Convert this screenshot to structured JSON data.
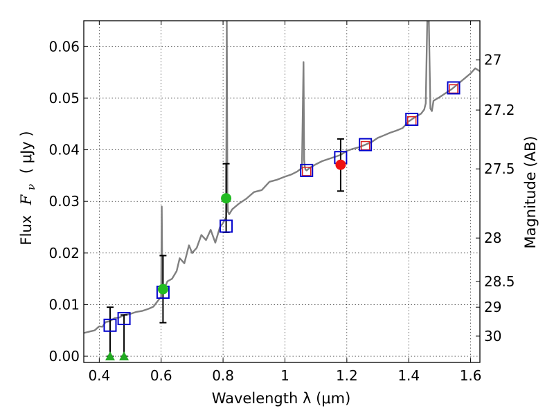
{
  "chart_data": {
    "type": "scatter",
    "xlabel": "Wavelength  λ (μm)",
    "ylabel_prefix": "Flux",
    "ylabel_symbol": "F",
    "ylabel_subscript": "ν",
    "ylabel_unit": "( μJy )",
    "y2label": "Magnitude (AB)",
    "xlim": [
      0.35,
      1.63
    ],
    "ylim": [
      -0.0012,
      0.065
    ],
    "grid": true,
    "x_ticks": [
      {
        "value": 0.4,
        "label": "0.4"
      },
      {
        "value": 0.6,
        "label": "0.6"
      },
      {
        "value": 0.8,
        "label": "0.8"
      },
      {
        "value": 1.0,
        "label": "1"
      },
      {
        "value": 1.2,
        "label": "1.2"
      },
      {
        "value": 1.4,
        "label": "1.4"
      },
      {
        "value": 1.6,
        "label": "1.6"
      }
    ],
    "y_ticks": [
      {
        "value": 0.0,
        "label": "0.00"
      },
      {
        "value": 0.01,
        "label": "0.01"
      },
      {
        "value": 0.02,
        "label": "0.02"
      },
      {
        "value": 0.03,
        "label": "0.03"
      },
      {
        "value": 0.04,
        "label": "0.04"
      },
      {
        "value": 0.05,
        "label": "0.05"
      },
      {
        "value": 0.06,
        "label": "0.06"
      }
    ],
    "mag_ticks": [
      {
        "flux": 0.0574,
        "label": "27"
      },
      {
        "flux": 0.0477,
        "label": "27.2"
      },
      {
        "flux": 0.0363,
        "label": "27.5"
      },
      {
        "flux": 0.0229,
        "label": "28"
      },
      {
        "flux": 0.0145,
        "label": "28.5"
      },
      {
        "flux": 0.0095,
        "label": "29"
      },
      {
        "flux": 0.0039,
        "label": "30"
      }
    ],
    "model_spectrum": {
      "name": "model SED",
      "color": "#808080",
      "x": [
        0.35,
        0.37,
        0.385,
        0.4,
        0.41,
        0.42,
        0.435,
        0.45,
        0.465,
        0.48,
        0.5,
        0.52,
        0.54,
        0.56,
        0.575,
        0.59,
        0.6,
        0.602,
        0.604,
        0.606,
        0.61,
        0.62,
        0.635,
        0.65,
        0.66,
        0.675,
        0.69,
        0.7,
        0.715,
        0.73,
        0.745,
        0.76,
        0.775,
        0.79,
        0.8,
        0.81,
        0.812,
        0.814,
        0.816,
        0.82,
        0.83,
        0.85,
        0.875,
        0.9,
        0.925,
        0.95,
        0.975,
        1.0,
        1.02,
        1.04,
        1.055,
        1.06,
        1.062,
        1.064,
        1.066,
        1.07,
        1.08,
        1.1,
        1.12,
        1.14,
        1.16,
        1.18,
        1.2,
        1.22,
        1.24,
        1.26,
        1.28,
        1.3,
        1.32,
        1.34,
        1.36,
        1.38,
        1.4,
        1.42,
        1.44,
        1.45,
        1.455,
        1.46,
        1.465,
        1.47,
        1.475,
        1.48,
        1.5,
        1.52,
        1.54,
        1.56,
        1.58,
        1.6,
        1.615,
        1.63
      ],
      "y": [
        0.0045,
        0.0048,
        0.005,
        0.0058,
        0.0057,
        0.0066,
        0.0068,
        0.0074,
        0.0075,
        0.008,
        0.0082,
        0.0086,
        0.0088,
        0.0092,
        0.0096,
        0.0108,
        0.0115,
        0.029,
        0.013,
        0.0135,
        0.013,
        0.0145,
        0.015,
        0.0165,
        0.019,
        0.018,
        0.0215,
        0.02,
        0.021,
        0.0235,
        0.0225,
        0.0245,
        0.022,
        0.025,
        0.0258,
        0.027,
        0.065,
        0.031,
        0.028,
        0.0275,
        0.0285,
        0.0295,
        0.0305,
        0.0318,
        0.0322,
        0.0338,
        0.0342,
        0.0348,
        0.0352,
        0.0358,
        0.0365,
        0.057,
        0.038,
        0.0368,
        0.0362,
        0.036,
        0.0365,
        0.0372,
        0.0378,
        0.0382,
        0.0386,
        0.039,
        0.0398,
        0.0402,
        0.0405,
        0.041,
        0.0415,
        0.0423,
        0.0428,
        0.0433,
        0.0437,
        0.0442,
        0.0455,
        0.0463,
        0.047,
        0.0478,
        0.049,
        0.065,
        0.065,
        0.048,
        0.0475,
        0.0495,
        0.0502,
        0.051,
        0.0518,
        0.0528,
        0.0538,
        0.0548,
        0.0558,
        0.0552
      ]
    },
    "photometry_boxes": [
      {
        "x": 0.435,
        "y": 0.006
      },
      {
        "x": 0.48,
        "y": 0.0073
      },
      {
        "x": 0.606,
        "y": 0.0124
      },
      {
        "x": 0.81,
        "y": 0.0252
      },
      {
        "x": 1.07,
        "y": 0.036
      },
      {
        "x": 1.18,
        "y": 0.0385
      },
      {
        "x": 1.26,
        "y": 0.041
      },
      {
        "x": 1.41,
        "y": 0.0459
      },
      {
        "x": 1.545,
        "y": 0.052
      }
    ],
    "box_color": "#0000cc",
    "small_red_markers": [
      {
        "x": 1.07,
        "y": 0.0358
      },
      {
        "x": 1.26,
        "y": 0.0408
      },
      {
        "x": 1.41,
        "y": 0.0456
      },
      {
        "x": 1.545,
        "y": 0.0518
      }
    ],
    "detections": [
      {
        "x": 0.606,
        "y": 0.013,
        "err_low": 0.0065,
        "err_high": 0.0195,
        "color": "#22bb22"
      },
      {
        "x": 0.81,
        "y": 0.0306,
        "err_low": 0.024,
        "err_high": 0.0373,
        "color": "#22bb22"
      },
      {
        "x": 1.18,
        "y": 0.0371,
        "err_low": 0.032,
        "err_high": 0.0421,
        "color": "#ee1111"
      }
    ],
    "upper_limits": [
      {
        "x": 0.435,
        "y": 0.0,
        "err_high": 0.0095,
        "color": "#22aa22"
      },
      {
        "x": 0.48,
        "y": 0.0,
        "err_high": 0.008,
        "color": "#22aa22"
      }
    ]
  }
}
